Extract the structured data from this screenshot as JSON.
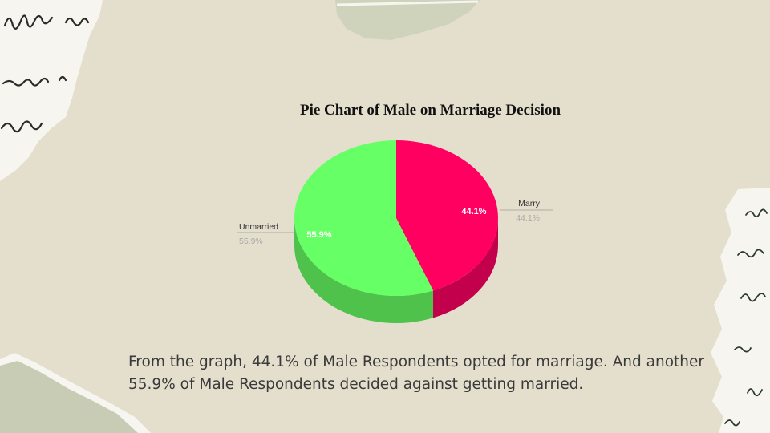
{
  "colors": {
    "marry": "#ff0060",
    "marry_side": "#c3004c",
    "unmarried": "#66ff66",
    "unmarried_side": "#4ec24a",
    "background": "#e4dfcd",
    "paper": "#f7f5ef",
    "ink": "#2a2a2a"
  },
  "chart_data": {
    "type": "pie",
    "title": "Pie Chart of Male on Marriage Decision",
    "slices": [
      {
        "label": "Marry",
        "value": 44.1,
        "value_label": "44.1%",
        "color": "#ff0060"
      },
      {
        "label": "Unmarried",
        "value": 55.9,
        "value_label": "55.9%",
        "color": "#66ff66"
      }
    ],
    "style": "3d"
  },
  "caption": "From the graph, 44.1% of Male Respondents opted for marriage. And another 55.9% of Male Respondents decided against getting married."
}
